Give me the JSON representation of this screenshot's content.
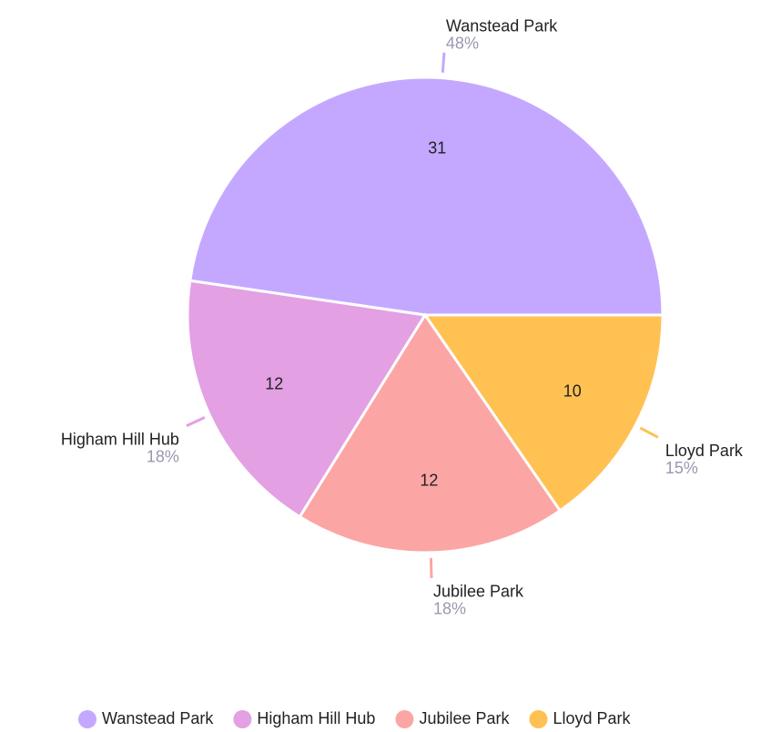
{
  "chart_data": {
    "type": "pie",
    "categories": [
      "Wanstead Park",
      "Higham Hill Hub",
      "Jubilee Park",
      "Lloyd Park"
    ],
    "values": [
      31,
      12,
      12,
      10
    ],
    "percent_labels": [
      "48%",
      "18%",
      "18%",
      "15%"
    ],
    "colors": [
      "#c4a8ff",
      "#e3a0e3",
      "#fca5a5",
      "#ffc152"
    ],
    "legend": "bottom"
  }
}
